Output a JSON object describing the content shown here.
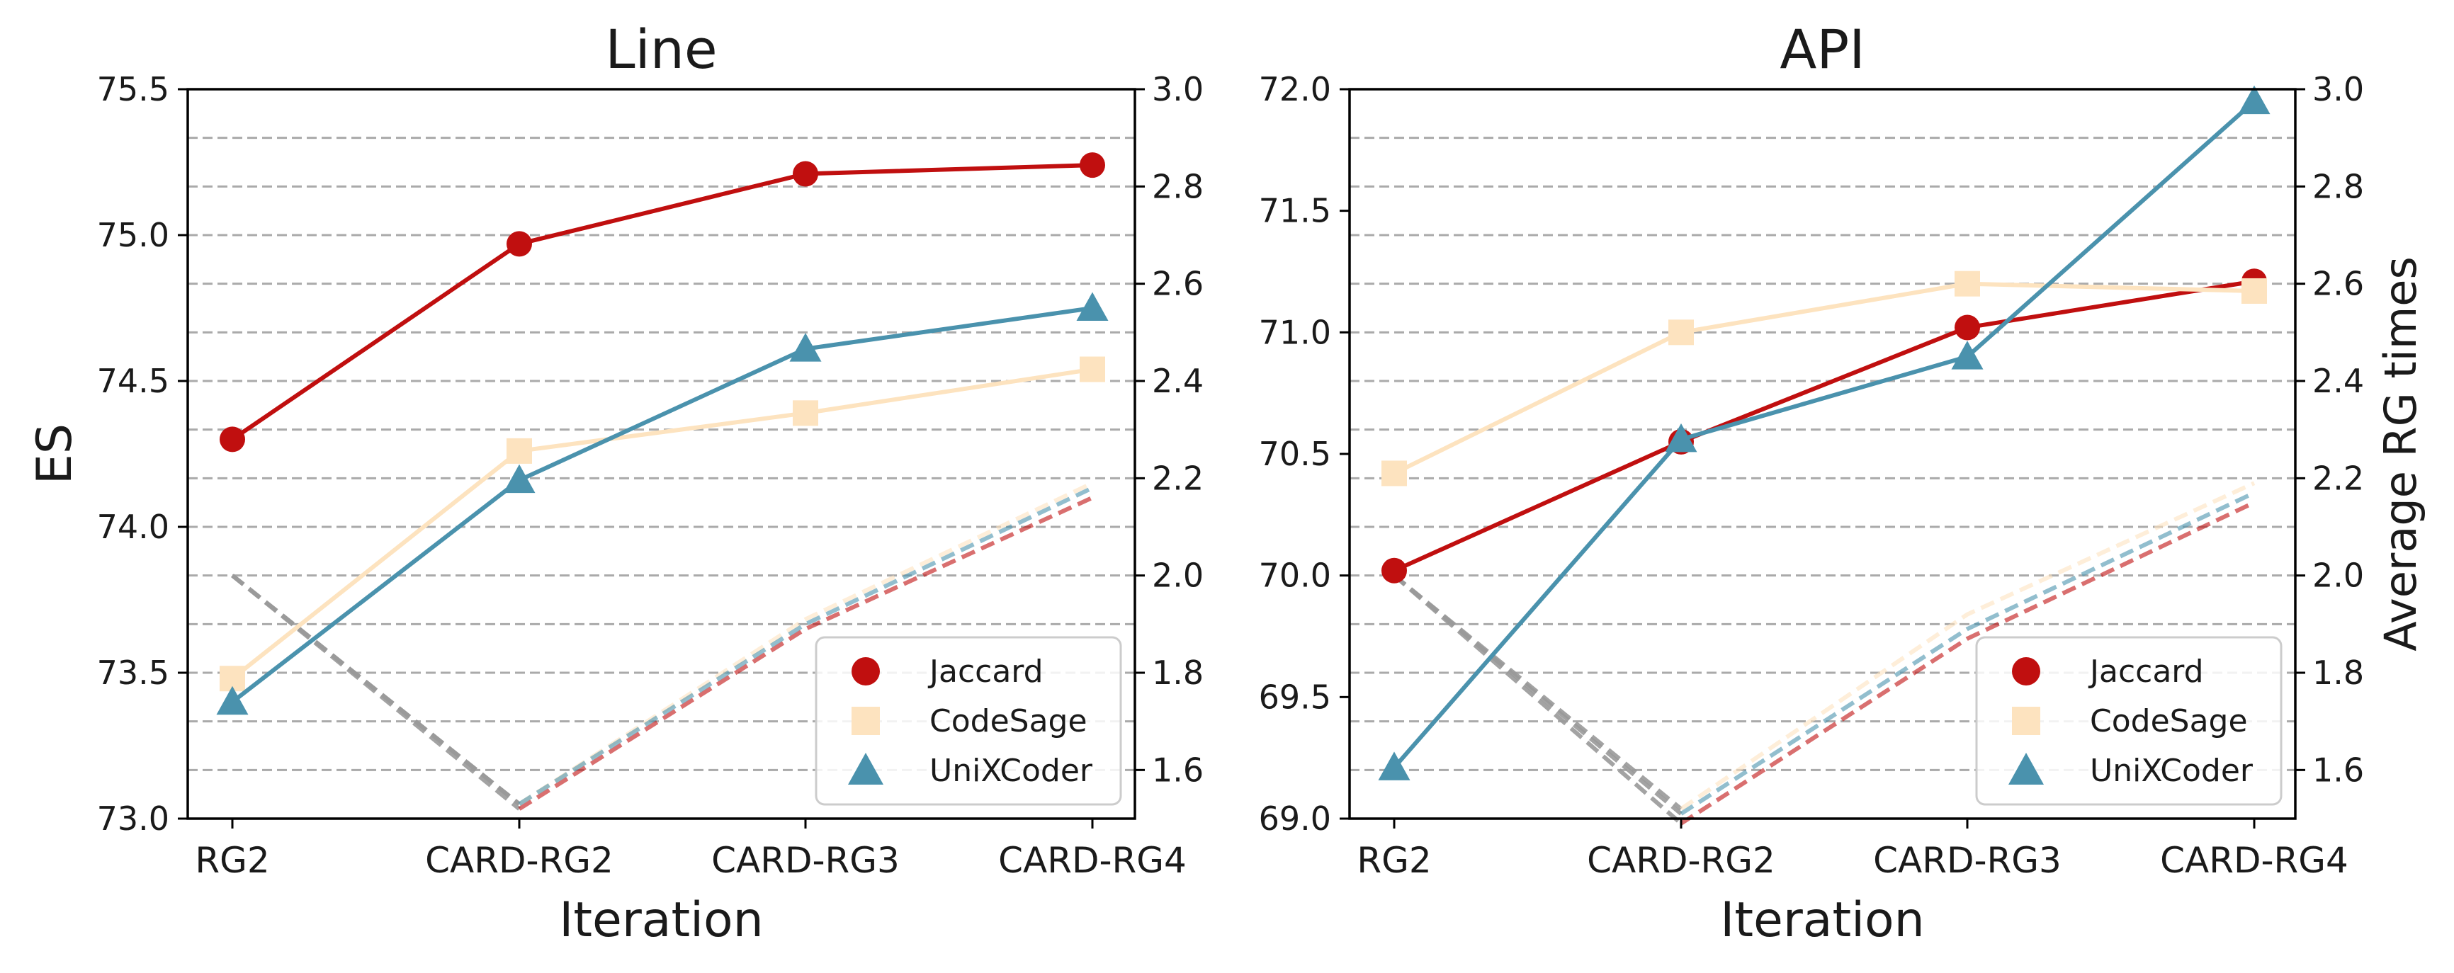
{
  "colors": {
    "jaccard": "#c00f0f",
    "codesage": "#fde3bf",
    "unixcoder": "#4a92ad",
    "gray_dash": "#9a9a9a",
    "grid": "#aaaaaa"
  },
  "legend": {
    "placement": "bottom-right",
    "entries": [
      "Jaccard",
      "CodeSage",
      "UniXCoder"
    ]
  },
  "chart_data": [
    {
      "type": "line",
      "title": "Line",
      "xlabel": "Iteration",
      "ylabel": "ES",
      "ylabel_right": "",
      "categories": [
        "RG2",
        "CARD-RG2",
        "CARD-RG3",
        "CARD-RG4"
      ],
      "ylim": [
        73.0,
        75.5
      ],
      "yticks": [
        "73.0",
        "73.5",
        "74.0",
        "74.5",
        "75.0",
        "75.5"
      ],
      "y2lim": [
        1.5,
        3.0
      ],
      "y2ticks": [
        "1.6",
        "1.8",
        "2.0",
        "2.2",
        "2.4",
        "2.6",
        "2.8",
        "3.0"
      ],
      "grid": "horizontal-dashed-right-axis",
      "series": [
        {
          "name": "Jaccard",
          "values": [
            74.3,
            74.97,
            75.21,
            75.24
          ]
        },
        {
          "name": "CodeSage",
          "values": [
            73.48,
            74.26,
            74.39,
            74.54
          ]
        },
        {
          "name": "UniXCoder",
          "values": [
            73.4,
            74.16,
            74.61,
            74.75
          ]
        }
      ],
      "series_rg_times": [
        {
          "name": "Jaccard",
          "values": [
            2.0,
            1.52,
            1.89,
            2.16
          ]
        },
        {
          "name": "CodeSage",
          "values": [
            2.0,
            1.53,
            1.91,
            2.19
          ]
        },
        {
          "name": "UniXCoder",
          "values": [
            2.0,
            1.53,
            1.9,
            2.18
          ]
        }
      ]
    },
    {
      "type": "line",
      "title": "API",
      "xlabel": "Iteration",
      "ylabel": "",
      "ylabel_right": "Average RG times",
      "categories": [
        "RG2",
        "CARD-RG2",
        "CARD-RG3",
        "CARD-RG4"
      ],
      "ylim": [
        69.0,
        72.0
      ],
      "yticks": [
        "69.0",
        "69.5",
        "70.0",
        "70.5",
        "71.0",
        "71.5",
        "72.0"
      ],
      "y2lim": [
        1.5,
        3.0
      ],
      "y2ticks": [
        "1.6",
        "1.8",
        "2.0",
        "2.2",
        "2.4",
        "2.6",
        "2.8",
        "3.0"
      ],
      "grid": "horizontal-dashed-right-axis",
      "series": [
        {
          "name": "Jaccard",
          "values": [
            70.02,
            70.55,
            71.02,
            71.21
          ]
        },
        {
          "name": "CodeSage",
          "values": [
            70.42,
            71.0,
            71.2,
            71.17
          ]
        },
        {
          "name": "UniXCoder",
          "values": [
            69.21,
            70.56,
            70.9,
            71.95
          ]
        }
      ],
      "series_rg_times": [
        {
          "name": "Jaccard",
          "values": [
            2.0,
            1.49,
            1.87,
            2.15
          ]
        },
        {
          "name": "CodeSage",
          "values": [
            2.0,
            1.52,
            1.92,
            2.19
          ]
        },
        {
          "name": "UniXCoder",
          "values": [
            2.0,
            1.51,
            1.89,
            2.17
          ]
        }
      ]
    }
  ]
}
